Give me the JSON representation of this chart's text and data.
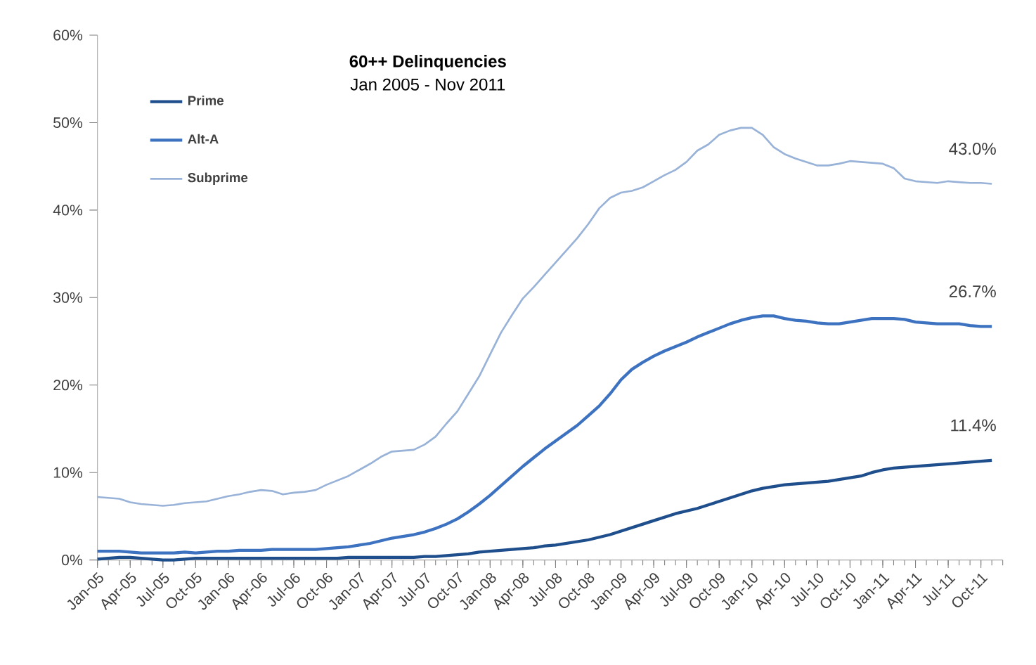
{
  "chart_data": {
    "type": "line",
    "title": "60++ Delinquencies",
    "subtitle": "Jan 2005 - Nov 2011",
    "categories": [
      "Jan-05",
      null,
      null,
      "Apr-05",
      null,
      null,
      "Jul-05",
      null,
      null,
      "Oct-05",
      null,
      null,
      "Jan-06",
      null,
      null,
      "Apr-06",
      null,
      null,
      "Jul-06",
      null,
      null,
      "Oct-06",
      null,
      null,
      "Jan-07",
      null,
      null,
      "Apr-07",
      null,
      null,
      "Jul-07",
      null,
      null,
      "Oct-07",
      null,
      null,
      "Jan-08",
      null,
      null,
      "Apr-08",
      null,
      null,
      "Jul-08",
      null,
      null,
      "Oct-08",
      null,
      null,
      "Jan-09",
      null,
      null,
      "Apr-09",
      null,
      null,
      "Jul-09",
      null,
      null,
      "Oct-09",
      null,
      null,
      "Jan-10",
      null,
      null,
      "Apr-10",
      null,
      null,
      "Jul-10",
      null,
      null,
      "Oct-10",
      null,
      null,
      "Jan-11",
      null,
      null,
      "Apr-11",
      null,
      null,
      "Jul-11",
      null,
      null,
      "Oct-11",
      null
    ],
    "series": [
      {
        "name": "Prime",
        "color": "#1f4e8c",
        "values": [
          0.1,
          0.2,
          0.3,
          0.3,
          0.2,
          0.1,
          0.0,
          0.0,
          0.1,
          0.2,
          0.2,
          0.2,
          0.2,
          0.2,
          0.2,
          0.2,
          0.2,
          0.2,
          0.2,
          0.2,
          0.2,
          0.2,
          0.2,
          0.3,
          0.3,
          0.3,
          0.3,
          0.3,
          0.3,
          0.3,
          0.4,
          0.4,
          0.5,
          0.6,
          0.7,
          0.9,
          1.0,
          1.1,
          1.2,
          1.3,
          1.4,
          1.6,
          1.7,
          1.9,
          2.1,
          2.3,
          2.6,
          2.9,
          3.3,
          3.7,
          4.1,
          4.5,
          4.9,
          5.3,
          5.6,
          5.9,
          6.3,
          6.7,
          7.1,
          7.5,
          7.9,
          8.2,
          8.4,
          8.6,
          8.7,
          8.8,
          8.9,
          9.0,
          9.2,
          9.4,
          9.6,
          10.0,
          10.3,
          10.5,
          10.6,
          10.7,
          10.8,
          10.9,
          11.0,
          11.1,
          11.2,
          11.3,
          11.4
        ],
        "value_labels": [
          null,
          null,
          null,
          null,
          null,
          null,
          null,
          null,
          null,
          null,
          null,
          null,
          null,
          null,
          null,
          null,
          null,
          null,
          null,
          null,
          null,
          null,
          null,
          null,
          null,
          null,
          null,
          null,
          null,
          null,
          null,
          null,
          null,
          null,
          null,
          null,
          null,
          null,
          null,
          null,
          null,
          null,
          null,
          null,
          null,
          null,
          null,
          null,
          null,
          null,
          null,
          null,
          null,
          null,
          null,
          null,
          null,
          null,
          null,
          null,
          null,
          null,
          null,
          null,
          null,
          null,
          null,
          null,
          null,
          null,
          null,
          null,
          null,
          null,
          null,
          null,
          null,
          null,
          null,
          null,
          null,
          null,
          "11.4%"
        ]
      },
      {
        "name": "Alt-A",
        "color": "#3d72c0",
        "values": [
          1.0,
          1.0,
          1.0,
          0.9,
          0.8,
          0.8,
          0.8,
          0.8,
          0.9,
          0.8,
          0.9,
          1.0,
          1.0,
          1.1,
          1.1,
          1.1,
          1.2,
          1.2,
          1.2,
          1.2,
          1.2,
          1.3,
          1.4,
          1.5,
          1.7,
          1.9,
          2.2,
          2.5,
          2.7,
          2.9,
          3.2,
          3.6,
          4.1,
          4.7,
          5.5,
          6.4,
          7.4,
          8.5,
          9.6,
          10.7,
          11.7,
          12.7,
          13.6,
          14.5,
          15.4,
          16.5,
          17.6,
          19.0,
          20.6,
          21.8,
          22.6,
          23.3,
          23.9,
          24.4,
          24.9,
          25.5,
          26.0,
          26.5,
          27.0,
          27.4,
          27.7,
          27.9,
          27.9,
          27.6,
          27.4,
          27.3,
          27.1,
          27.0,
          27.0,
          27.2,
          27.4,
          27.6,
          27.6,
          27.6,
          27.5,
          27.2,
          27.1,
          27.0,
          27.0,
          27.0,
          26.8,
          26.7,
          26.7
        ],
        "value_labels": [
          null,
          null,
          null,
          null,
          null,
          null,
          null,
          null,
          null,
          null,
          null,
          null,
          null,
          null,
          null,
          null,
          null,
          null,
          null,
          null,
          null,
          null,
          null,
          null,
          null,
          null,
          null,
          null,
          null,
          null,
          null,
          null,
          null,
          null,
          null,
          null,
          null,
          null,
          null,
          null,
          null,
          null,
          null,
          null,
          null,
          null,
          null,
          null,
          null,
          null,
          null,
          null,
          null,
          null,
          null,
          null,
          null,
          null,
          null,
          null,
          null,
          null,
          null,
          null,
          null,
          null,
          null,
          null,
          null,
          null,
          null,
          null,
          null,
          null,
          null,
          null,
          null,
          null,
          null,
          null,
          null,
          null,
          "26.7%"
        ]
      },
      {
        "name": "Subprime",
        "color": "#98b2d8",
        "values": [
          7.2,
          7.1,
          7.0,
          6.6,
          6.4,
          6.3,
          6.2,
          6.3,
          6.5,
          6.6,
          6.7,
          7.0,
          7.3,
          7.5,
          7.8,
          8.0,
          7.9,
          7.5,
          7.7,
          7.8,
          8.0,
          8.6,
          9.1,
          9.6,
          10.3,
          11.0,
          11.8,
          12.4,
          12.5,
          12.6,
          13.2,
          14.1,
          15.6,
          17.0,
          19.0,
          21.0,
          23.5,
          26.0,
          28.0,
          29.9,
          31.2,
          32.6,
          34.0,
          35.4,
          36.8,
          38.4,
          40.2,
          41.4,
          42.0,
          42.2,
          42.6,
          43.3,
          44.0,
          44.6,
          45.5,
          46.8,
          47.5,
          48.6,
          49.1,
          49.4,
          49.4,
          48.6,
          47.2,
          46.4,
          45.9,
          45.5,
          45.1,
          45.1,
          45.3,
          45.6,
          45.5,
          45.4,
          45.3,
          44.8,
          43.6,
          43.3,
          43.2,
          43.1,
          43.3,
          43.2,
          43.1,
          43.1,
          43.0
        ],
        "value_labels": [
          null,
          null,
          null,
          null,
          null,
          null,
          null,
          null,
          null,
          null,
          null,
          null,
          null,
          null,
          null,
          null,
          null,
          null,
          null,
          null,
          null,
          null,
          null,
          null,
          null,
          null,
          null,
          null,
          null,
          null,
          null,
          null,
          null,
          null,
          null,
          null,
          null,
          null,
          null,
          null,
          null,
          null,
          null,
          null,
          null,
          null,
          null,
          null,
          null,
          null,
          null,
          null,
          null,
          null,
          null,
          null,
          null,
          null,
          null,
          null,
          null,
          null,
          null,
          null,
          null,
          null,
          null,
          null,
          null,
          null,
          null,
          null,
          null,
          null,
          null,
          null,
          null,
          null,
          null,
          null,
          null,
          null,
          "43.0%"
        ]
      }
    ],
    "ylim": [
      0,
      60
    ],
    "yticks": [
      {
        "value": 0,
        "label": "0%"
      },
      {
        "value": 10,
        "label": "10%"
      },
      {
        "value": 20,
        "label": "20%"
      },
      {
        "value": 30,
        "label": "30%"
      },
      {
        "value": 40,
        "label": "40%"
      },
      {
        "value": 50,
        "label": "50%"
      },
      {
        "value": 60,
        "label": "60%"
      }
    ],
    "legend": "top left",
    "grid": false,
    "marker": "none",
    "line_style": "solid"
  }
}
